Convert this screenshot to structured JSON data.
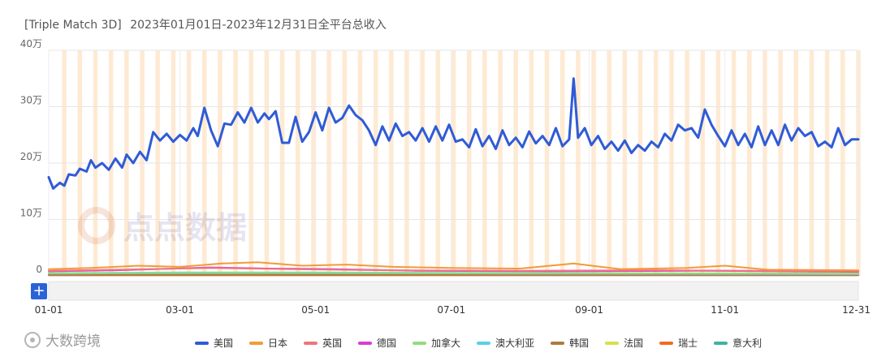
{
  "header": {
    "app_name": "[Triple Match 3D]",
    "subtitle": "2023年01月01日-2023年12月31日全平台总收入"
  },
  "watermark_text": "点点数据",
  "brand_text": "大数跨境",
  "zoom_button_label": "+",
  "colors": {
    "美国": "#2f5bd7",
    "日本": "#f29a38",
    "英国": "#f0747e",
    "德国": "#d93bd6",
    "加拿大": "#8fdd7c",
    "澳大利亚": "#5ad0e6",
    "韩国": "#b07a3e",
    "法国": "#d6e04a",
    "瑞士": "#f36a1d",
    "意大利": "#3fb39a",
    "highlight_band": "#fde3c4"
  },
  "chart_data": {
    "type": "line",
    "title": "",
    "xlabel": "",
    "ylabel": "",
    "x_start": "2023-01-01",
    "x_end": "2023-12-31",
    "x_ticks": [
      "01-01",
      "03-01",
      "05-01",
      "07-01",
      "09-01",
      "11-01",
      "12-31"
    ],
    "x_tick_dates": [
      "2023-01-01",
      "2023-03-01",
      "2023-05-01",
      "2023-07-01",
      "2023-09-01",
      "2023-11-01",
      "2023-12-31"
    ],
    "y_ticks": [
      "0",
      "10万",
      "20万",
      "30万",
      "40万"
    ],
    "ylim": [
      0,
      400000
    ],
    "grid": true,
    "legend_position": "bottom",
    "highlight_bands": "weekends",
    "series": [
      {
        "name": "美国",
        "color": "#2f5bd7",
        "points": [
          [
            "2023-01-01",
            175000
          ],
          [
            "2023-01-03",
            155000
          ],
          [
            "2023-01-06",
            165000
          ],
          [
            "2023-01-08",
            160000
          ],
          [
            "2023-01-10",
            180000
          ],
          [
            "2023-01-13",
            178000
          ],
          [
            "2023-01-15",
            190000
          ],
          [
            "2023-01-18",
            185000
          ],
          [
            "2023-01-20",
            205000
          ],
          [
            "2023-01-22",
            192000
          ],
          [
            "2023-01-25",
            200000
          ],
          [
            "2023-01-28",
            188000
          ],
          [
            "2023-01-31",
            208000
          ],
          [
            "2023-02-03",
            192000
          ],
          [
            "2023-02-05",
            215000
          ],
          [
            "2023-02-08",
            200000
          ],
          [
            "2023-02-11",
            220000
          ],
          [
            "2023-02-14",
            205000
          ],
          [
            "2023-02-17",
            255000
          ],
          [
            "2023-02-20",
            240000
          ],
          [
            "2023-02-23",
            252000
          ],
          [
            "2023-02-26",
            238000
          ],
          [
            "2023-03-01",
            250000
          ],
          [
            "2023-03-04",
            240000
          ],
          [
            "2023-03-07",
            262000
          ],
          [
            "2023-03-09",
            248000
          ],
          [
            "2023-03-12",
            298000
          ],
          [
            "2023-03-15",
            258000
          ],
          [
            "2023-03-18",
            230000
          ],
          [
            "2023-03-21",
            270000
          ],
          [
            "2023-03-24",
            268000
          ],
          [
            "2023-03-27",
            290000
          ],
          [
            "2023-03-30",
            272000
          ],
          [
            "2023-04-02",
            298000
          ],
          [
            "2023-04-05",
            272000
          ],
          [
            "2023-04-08",
            288000
          ],
          [
            "2023-04-10",
            278000
          ],
          [
            "2023-04-13",
            292000
          ],
          [
            "2023-04-16",
            236000
          ],
          [
            "2023-04-19",
            236000
          ],
          [
            "2023-04-22",
            282000
          ],
          [
            "2023-04-25",
            238000
          ],
          [
            "2023-04-28",
            255000
          ],
          [
            "2023-05-01",
            290000
          ],
          [
            "2023-05-04",
            258000
          ],
          [
            "2023-05-07",
            298000
          ],
          [
            "2023-05-10",
            272000
          ],
          [
            "2023-05-13",
            280000
          ],
          [
            "2023-05-16",
            302000
          ],
          [
            "2023-05-19",
            285000
          ],
          [
            "2023-05-22",
            276000
          ],
          [
            "2023-05-25",
            258000
          ],
          [
            "2023-05-28",
            232000
          ],
          [
            "2023-05-31",
            265000
          ],
          [
            "2023-06-03",
            240000
          ],
          [
            "2023-06-06",
            270000
          ],
          [
            "2023-06-09",
            248000
          ],
          [
            "2023-06-12",
            255000
          ],
          [
            "2023-06-15",
            240000
          ],
          [
            "2023-06-18",
            262000
          ],
          [
            "2023-06-21",
            238000
          ],
          [
            "2023-06-24",
            265000
          ],
          [
            "2023-06-27",
            240000
          ],
          [
            "2023-06-30",
            268000
          ],
          [
            "2023-07-03",
            238000
          ],
          [
            "2023-07-06",
            242000
          ],
          [
            "2023-07-09",
            228000
          ],
          [
            "2023-07-12",
            260000
          ],
          [
            "2023-07-15",
            230000
          ],
          [
            "2023-07-18",
            248000
          ],
          [
            "2023-07-21",
            225000
          ],
          [
            "2023-07-24",
            258000
          ],
          [
            "2023-07-27",
            232000
          ],
          [
            "2023-07-30",
            245000
          ],
          [
            "2023-08-02",
            228000
          ],
          [
            "2023-08-05",
            256000
          ],
          [
            "2023-08-08",
            235000
          ],
          [
            "2023-08-11",
            248000
          ],
          [
            "2023-08-14",
            232000
          ],
          [
            "2023-08-17",
            262000
          ],
          [
            "2023-08-20",
            230000
          ],
          [
            "2023-08-23",
            242000
          ],
          [
            "2023-08-25",
            350000
          ],
          [
            "2023-08-27",
            245000
          ],
          [
            "2023-08-30",
            262000
          ],
          [
            "2023-09-02",
            232000
          ],
          [
            "2023-09-05",
            248000
          ],
          [
            "2023-09-08",
            225000
          ],
          [
            "2023-09-11",
            238000
          ],
          [
            "2023-09-14",
            222000
          ],
          [
            "2023-09-17",
            240000
          ],
          [
            "2023-09-20",
            218000
          ],
          [
            "2023-09-23",
            232000
          ],
          [
            "2023-09-26",
            222000
          ],
          [
            "2023-09-29",
            238000
          ],
          [
            "2023-10-02",
            228000
          ],
          [
            "2023-10-05",
            252000
          ],
          [
            "2023-10-08",
            240000
          ],
          [
            "2023-10-11",
            268000
          ],
          [
            "2023-10-14",
            258000
          ],
          [
            "2023-10-17",
            262000
          ],
          [
            "2023-10-20",
            245000
          ],
          [
            "2023-10-23",
            295000
          ],
          [
            "2023-10-26",
            268000
          ],
          [
            "2023-10-29",
            248000
          ],
          [
            "2023-11-01",
            230000
          ],
          [
            "2023-11-04",
            258000
          ],
          [
            "2023-11-07",
            232000
          ],
          [
            "2023-11-10",
            252000
          ],
          [
            "2023-11-13",
            228000
          ],
          [
            "2023-11-16",
            265000
          ],
          [
            "2023-11-19",
            232000
          ],
          [
            "2023-11-22",
            258000
          ],
          [
            "2023-11-25",
            232000
          ],
          [
            "2023-11-28",
            268000
          ],
          [
            "2023-12-01",
            240000
          ],
          [
            "2023-12-04",
            262000
          ],
          [
            "2023-12-07",
            248000
          ],
          [
            "2023-12-10",
            255000
          ],
          [
            "2023-12-13",
            230000
          ],
          [
            "2023-12-16",
            238000
          ],
          [
            "2023-12-19",
            228000
          ],
          [
            "2023-12-22",
            262000
          ],
          [
            "2023-12-25",
            232000
          ],
          [
            "2023-12-28",
            242000
          ],
          [
            "2023-12-31",
            242000
          ]
        ]
      },
      {
        "name": "日本",
        "color": "#f29a38",
        "points": [
          [
            "2023-01-01",
            12000
          ],
          [
            "2023-01-20",
            14000
          ],
          [
            "2023-02-10",
            18000
          ],
          [
            "2023-03-01",
            16000
          ],
          [
            "2023-03-20",
            22000
          ],
          [
            "2023-04-05",
            24000
          ],
          [
            "2023-04-25",
            18000
          ],
          [
            "2023-05-15",
            20000
          ],
          [
            "2023-06-05",
            16000
          ],
          [
            "2023-07-01",
            14000
          ],
          [
            "2023-08-01",
            13000
          ],
          [
            "2023-08-25",
            22000
          ],
          [
            "2023-09-15",
            12000
          ],
          [
            "2023-10-15",
            14000
          ],
          [
            "2023-11-01",
            18000
          ],
          [
            "2023-11-20",
            11000
          ],
          [
            "2023-12-31",
            10000
          ]
        ]
      },
      {
        "name": "英国",
        "color": "#f0747e",
        "points": [
          [
            "2023-01-01",
            9000
          ],
          [
            "2023-02-01",
            11000
          ],
          [
            "2023-03-15",
            14000
          ],
          [
            "2023-04-20",
            12000
          ],
          [
            "2023-06-01",
            10000
          ],
          [
            "2023-08-01",
            9000
          ],
          [
            "2023-10-01",
            10000
          ],
          [
            "2023-12-31",
            8000
          ]
        ]
      },
      {
        "name": "德国",
        "color": "#d93bd6",
        "points": [
          [
            "2023-01-01",
            8000
          ],
          [
            "2023-02-01",
            10000
          ],
          [
            "2023-03-15",
            15000
          ],
          [
            "2023-04-10",
            13000
          ],
          [
            "2023-05-10",
            12000
          ],
          [
            "2023-06-15",
            9000
          ],
          [
            "2023-08-15",
            8000
          ],
          [
            "2023-10-20",
            9000
          ],
          [
            "2023-12-31",
            7000
          ]
        ]
      },
      {
        "name": "加拿大",
        "color": "#8fdd7c",
        "points": [
          [
            "2023-01-01",
            5000
          ],
          [
            "2023-03-01",
            6000
          ],
          [
            "2023-05-01",
            6000
          ],
          [
            "2023-08-01",
            5000
          ],
          [
            "2023-12-31",
            4000
          ]
        ]
      },
      {
        "name": "澳大利亚",
        "color": "#5ad0e6",
        "points": [
          [
            "2023-01-01",
            4000
          ],
          [
            "2023-04-01",
            5000
          ],
          [
            "2023-08-01",
            4000
          ],
          [
            "2023-12-31",
            3000
          ]
        ]
      },
      {
        "name": "韩国",
        "color": "#b07a3e",
        "points": [
          [
            "2023-01-01",
            2000
          ],
          [
            "2023-06-01",
            2000
          ],
          [
            "2023-12-31",
            2000
          ]
        ]
      },
      {
        "name": "法国",
        "color": "#d6e04a",
        "points": [
          [
            "2023-01-01",
            3000
          ],
          [
            "2023-06-01",
            3000
          ],
          [
            "2023-12-31",
            3000
          ]
        ]
      },
      {
        "name": "瑞士",
        "color": "#f36a1d",
        "points": [
          [
            "2023-01-01",
            1000
          ],
          [
            "2023-06-01",
            1000
          ],
          [
            "2023-12-31",
            1000
          ]
        ]
      },
      {
        "name": "意大利",
        "color": "#3fb39a",
        "points": [
          [
            "2023-01-01",
            2000
          ],
          [
            "2023-06-01",
            2500
          ],
          [
            "2023-12-31",
            2000
          ]
        ]
      }
    ]
  }
}
